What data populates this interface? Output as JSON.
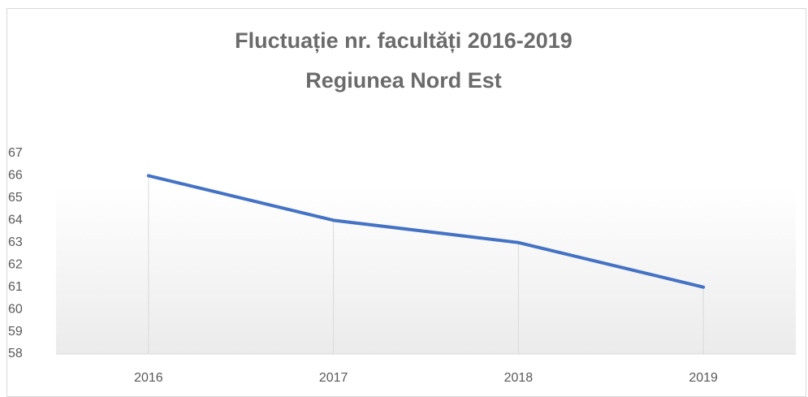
{
  "chart_data": {
    "type": "line",
    "title": "Fluctuație nr. facultăți 2016-2019",
    "subtitle": "Regiunea Nord Est",
    "categories": [
      "2016",
      "2017",
      "2018",
      "2019"
    ],
    "values": [
      66,
      64,
      63,
      61
    ],
    "color": "#4472c4",
    "ylim": [
      58,
      67
    ],
    "yticks": [
      58,
      59,
      60,
      61,
      62,
      63,
      64,
      65,
      66,
      67
    ],
    "grid": false,
    "drop_lines": true
  }
}
